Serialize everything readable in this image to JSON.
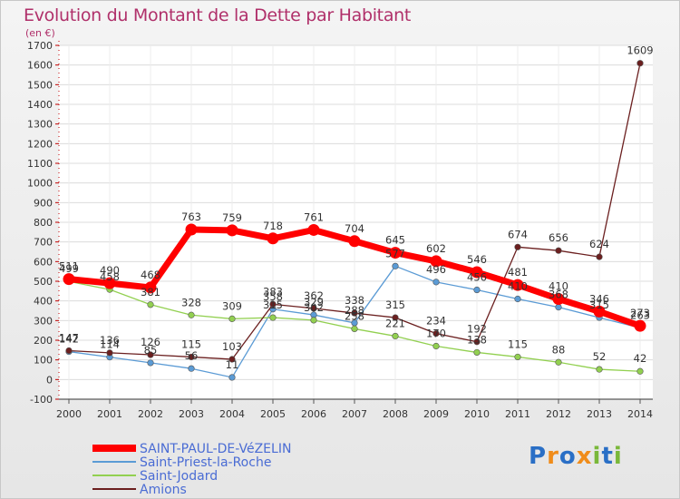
{
  "title": "Evolution du Montant de la Dette par Habitant",
  "unit": "(en €)",
  "logo": {
    "text": "Proxiti",
    "colors": [
      "#2a6fc6",
      "#f08c1a",
      "#2a6fc6",
      "#f08c1a",
      "#7ab83a",
      "#2a6fc6",
      "#7ab83a"
    ]
  },
  "chart_data": {
    "type": "line",
    "title": "Evolution du Montant de la Dette par Habitant",
    "ylabel": "(en €)",
    "xlabel": "",
    "x": [
      "2000",
      "2001",
      "2002",
      "2003",
      "2004",
      "2005",
      "2006",
      "2007",
      "2008",
      "2009",
      "2010",
      "2011",
      "2012",
      "2013",
      "2014"
    ],
    "ylim": [
      -100,
      1700
    ],
    "yticks": [
      -100,
      0,
      100,
      200,
      300,
      400,
      500,
      600,
      700,
      800,
      900,
      1000,
      1100,
      1200,
      1300,
      1400,
      1500,
      1600,
      1700
    ],
    "grid": true,
    "legend_position": "bottom-left",
    "series": [
      {
        "name": "SAINT-PAUL-DE-VéZELIN",
        "color": "#ff0000",
        "values": [
          511,
          490,
          468,
          763,
          759,
          718,
          761,
          704,
          645,
          602,
          546,
          481,
          410,
          346,
          273
        ]
      },
      {
        "name": "Saint-Priest-la-Roche",
        "color": "#5b9bd5",
        "values": [
          142,
          114,
          85,
          56,
          11,
          358,
          329,
          288,
          577,
          496,
          456,
          410,
          368,
          315,
          263
        ]
      },
      {
        "name": "Saint-Jodard",
        "color": "#92d050",
        "values": [
          499,
          458,
          381,
          328,
          309,
          315,
          302,
          258,
          221,
          170,
          138,
          115,
          88,
          52,
          42
        ]
      },
      {
        "name": "Amions",
        "color": "#6b1f1f",
        "values": [
          147,
          136,
          126,
          115,
          103,
          383,
          362,
          338,
          315,
          234,
          192,
          674,
          656,
          624,
          1609
        ]
      }
    ]
  }
}
